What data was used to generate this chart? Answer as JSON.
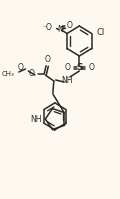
{
  "bg_color": "#fdf8f0",
  "line_color": "#2a2a2a",
  "lw": 1.1,
  "figsize": [
    1.2,
    1.99
  ],
  "dpi": 100,
  "xlim": [
    0,
    120
  ],
  "ylim": [
    0,
    199
  ]
}
